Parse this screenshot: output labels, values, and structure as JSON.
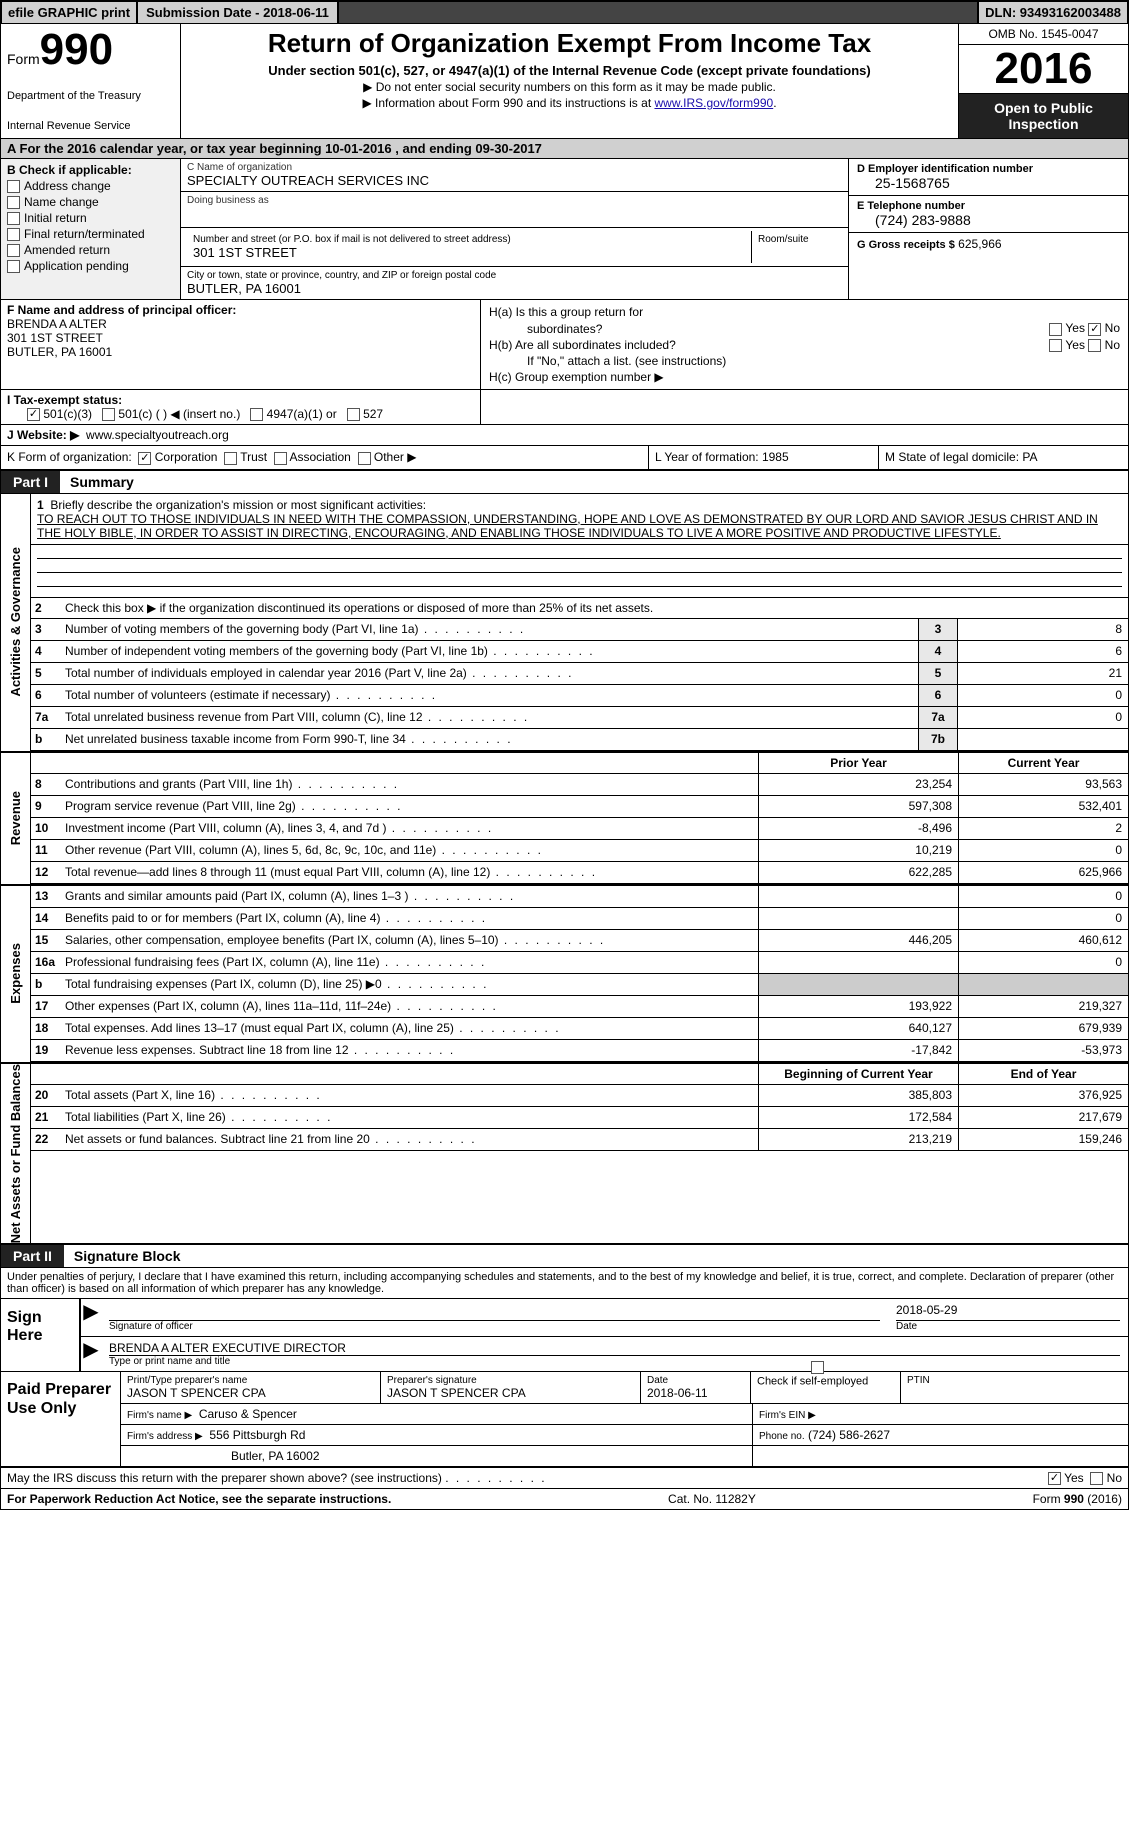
{
  "topbar": {
    "efile": "efile GRAPHIC print",
    "submission": "Submission Date - 2018-06-11",
    "dln": "DLN: 93493162003488"
  },
  "header": {
    "form_label": "Form",
    "form_no": "990",
    "dept1": "Department of the Treasury",
    "dept2": "Internal Revenue Service",
    "title": "Return of Organization Exempt From Income Tax",
    "subtitle": "Under section 501(c), 527, or 4947(a)(1) of the Internal Revenue Code (except private foundations)",
    "note1": "▶ Do not enter social security numbers on this form as it may be made public.",
    "note2_pre": "▶ Information about Form 990 and its instructions is at ",
    "note2_link": "www.IRS.gov/form990",
    "omb": "OMB No. 1545-0047",
    "year": "2016",
    "open": "Open to Public Inspection"
  },
  "rowA": "A  For the 2016 calendar year, or tax year beginning 10-01-2016   , and ending 09-30-2017",
  "colB": {
    "hdr": "B Check if applicable:",
    "items": [
      "Address change",
      "Name change",
      "Initial return",
      "Final return/terminated",
      "Amended return",
      "Application pending"
    ]
  },
  "colC": {
    "name_lbl": "C Name of organization",
    "name": "SPECIALTY OUTREACH SERVICES INC",
    "dba_lbl": "Doing business as",
    "addr_lbl": "Number and street (or P.O. box if mail is not delivered to street address)",
    "room_lbl": "Room/suite",
    "addr": "301 1ST STREET",
    "city_lbl": "City or town, state or province, country, and ZIP or foreign postal code",
    "city": "BUTLER, PA  16001"
  },
  "colD": {
    "ein_lbl": "D Employer identification number",
    "ein": "25-1568765",
    "tel_lbl": "E Telephone number",
    "tel": "(724) 283-9888",
    "gross_lbl": "G Gross receipts $",
    "gross": "625,966"
  },
  "rowF": {
    "lbl": "F  Name and address of principal officer:",
    "name": "BRENDA A ALTER",
    "addr1": "301 1ST STREET",
    "addr2": "BUTLER, PA  16001"
  },
  "rowH": {
    "a": "H(a)  Is this a group return for",
    "a2": "subordinates?",
    "b": "H(b)  Are all subordinates included?",
    "bnote": "If \"No,\" attach a list. (see instructions)",
    "c": "H(c)  Group exemption number ▶",
    "yes": "Yes",
    "no": "No"
  },
  "rowI": {
    "lbl": "I  Tax-exempt status:",
    "c1": "501(c)(3)",
    "c2": "501(c) (   ) ◀ (insert no.)",
    "c3": "4947(a)(1) or",
    "c4": "527"
  },
  "rowJ": {
    "lbl": "J  Website: ▶",
    "val": "www.specialtyoutreach.org"
  },
  "rowK": {
    "lbl": "K Form of organization:",
    "opts": [
      "Corporation",
      "Trust",
      "Association",
      "Other ▶"
    ],
    "L": "L Year of formation: 1985",
    "M": "M State of legal domicile: PA"
  },
  "part1": {
    "tag": "Part I",
    "title": "Summary"
  },
  "mission": {
    "num": "1",
    "lbl": "Briefly describe the organization's mission or most significant activities:",
    "text": "TO REACH OUT TO THOSE INDIVIDUALS IN NEED WITH THE COMPASSION, UNDERSTANDING, HOPE AND LOVE AS DEMONSTRATED BY OUR LORD AND SAVIOR JESUS CHRIST AND IN THE HOLY BIBLE, IN ORDER TO ASSIST IN DIRECTING, ENCOURAGING, AND ENABLING THOSE INDIVIDUALS TO LIVE A MORE POSITIVE AND PRODUCTIVE LIFESTYLE."
  },
  "gov": {
    "label": "Activities & Governance",
    "l2": "Check this box ▶        if the organization discontinued its operations or disposed of more than 25% of its net assets.",
    "rows": [
      {
        "n": "3",
        "d": "Number of voting members of the governing body (Part VI, line 1a)",
        "ln": "3",
        "v": "8"
      },
      {
        "n": "4",
        "d": "Number of independent voting members of the governing body (Part VI, line 1b)",
        "ln": "4",
        "v": "6"
      },
      {
        "n": "5",
        "d": "Total number of individuals employed in calendar year 2016 (Part V, line 2a)",
        "ln": "5",
        "v": "21"
      },
      {
        "n": "6",
        "d": "Total number of volunteers (estimate if necessary)",
        "ln": "6",
        "v": "0"
      },
      {
        "n": "7a",
        "d": "Total unrelated business revenue from Part VIII, column (C), line 12",
        "ln": "7a",
        "v": "0"
      },
      {
        "n": "b",
        "d": "Net unrelated business taxable income from Form 990-T, line 34",
        "ln": "7b",
        "v": ""
      }
    ]
  },
  "rev": {
    "label": "Revenue",
    "prior": "Prior Year",
    "curr": "Current Year",
    "rows": [
      {
        "n": "8",
        "d": "Contributions and grants (Part VIII, line 1h)",
        "p": "23,254",
        "c": "93,563"
      },
      {
        "n": "9",
        "d": "Program service revenue (Part VIII, line 2g)",
        "p": "597,308",
        "c": "532,401"
      },
      {
        "n": "10",
        "d": "Investment income (Part VIII, column (A), lines 3, 4, and 7d )",
        "p": "-8,496",
        "c": "2"
      },
      {
        "n": "11",
        "d": "Other revenue (Part VIII, column (A), lines 5, 6d, 8c, 9c, 10c, and 11e)",
        "p": "10,219",
        "c": "0"
      },
      {
        "n": "12",
        "d": "Total revenue—add lines 8 through 11 (must equal Part VIII, column (A), line 12)",
        "p": "622,285",
        "c": "625,966"
      }
    ]
  },
  "exp": {
    "label": "Expenses",
    "rows": [
      {
        "n": "13",
        "d": "Grants and similar amounts paid (Part IX, column (A), lines 1–3 )",
        "p": "",
        "c": "0"
      },
      {
        "n": "14",
        "d": "Benefits paid to or for members (Part IX, column (A), line 4)",
        "p": "",
        "c": "0"
      },
      {
        "n": "15",
        "d": "Salaries, other compensation, employee benefits (Part IX, column (A), lines 5–10)",
        "p": "446,205",
        "c": "460,612"
      },
      {
        "n": "16a",
        "d": "Professional fundraising fees (Part IX, column (A), line 11e)",
        "p": "",
        "c": "0"
      },
      {
        "n": "b",
        "d": "Total fundraising expenses (Part IX, column (D), line 25) ▶0",
        "p": "",
        "c": "",
        "shade": true
      },
      {
        "n": "17",
        "d": "Other expenses (Part IX, column (A), lines 11a–11d, 11f–24e)",
        "p": "193,922",
        "c": "219,327"
      },
      {
        "n": "18",
        "d": "Total expenses. Add lines 13–17 (must equal Part IX, column (A), line 25)",
        "p": "640,127",
        "c": "679,939"
      },
      {
        "n": "19",
        "d": "Revenue less expenses. Subtract line 18 from line 12",
        "p": "-17,842",
        "c": "-53,973"
      }
    ]
  },
  "net": {
    "label": "Net Assets or Fund Balances",
    "begin": "Beginning of Current Year",
    "end": "End of Year",
    "rows": [
      {
        "n": "20",
        "d": "Total assets (Part X, line 16)",
        "p": "385,803",
        "c": "376,925"
      },
      {
        "n": "21",
        "d": "Total liabilities (Part X, line 26)",
        "p": "172,584",
        "c": "217,679"
      },
      {
        "n": "22",
        "d": "Net assets or fund balances. Subtract line 21 from line 20",
        "p": "213,219",
        "c": "159,246"
      }
    ]
  },
  "part2": {
    "tag": "Part II",
    "title": "Signature Block"
  },
  "sig": {
    "declaration": "Under penalties of perjury, I declare that I have examined this return, including accompanying schedules and statements, and to the best of my knowledge and belief, it is true, correct, and complete. Declaration of preparer (other than officer) is based on all information of which preparer has any knowledge.",
    "sign_here": "Sign Here",
    "sig_officer": "Signature of officer",
    "date": "2018-05-29",
    "date_lbl": "Date",
    "name_title": "BRENDA A ALTER  EXECUTIVE DIRECTOR",
    "name_lbl": "Type or print name and title"
  },
  "prep": {
    "title": "Paid Preparer Use Only",
    "pname_lbl": "Print/Type preparer's name",
    "pname": "JASON T SPENCER CPA",
    "psig_lbl": "Preparer's signature",
    "psig": "JASON T SPENCER CPA",
    "pdate_lbl": "Date",
    "pdate": "2018-06-11",
    "pcheck": "Check         if self-employed",
    "ptin": "PTIN",
    "firm_lbl": "Firm's name    ▶",
    "firm": "Caruso & Spencer",
    "fein_lbl": "Firm's EIN ▶",
    "faddr_lbl": "Firm's address ▶",
    "faddr1": "556 Pittsburgh Rd",
    "faddr2": "Butler, PA  16002",
    "phone_lbl": "Phone no.",
    "phone": "(724) 586-2627"
  },
  "footer": {
    "discuss": "May the IRS discuss this return with the preparer shown above? (see instructions)",
    "paperwork": "For Paperwork Reduction Act Notice, see the separate instructions.",
    "cat": "Cat. No. 11282Y",
    "formver": "Form 990 (2016)",
    "yes": "Yes",
    "no": "No"
  }
}
